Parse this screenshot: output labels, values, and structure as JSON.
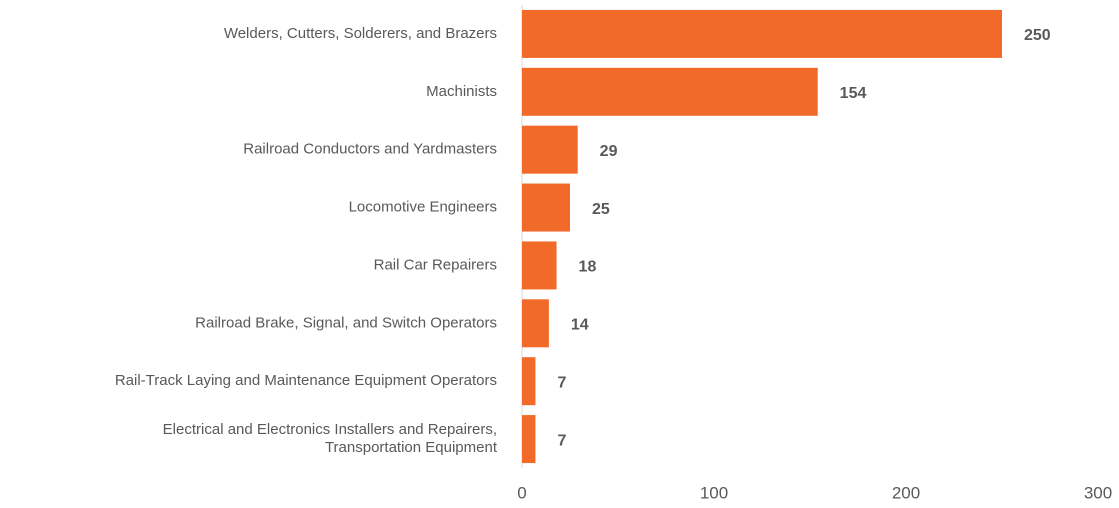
{
  "chart_data": {
    "type": "bar",
    "orientation": "horizontal",
    "categories": [
      "Welders, Cutters, Solderers, and Brazers",
      "Machinists",
      "Railroad Conductors and Yardmasters",
      "Locomotive Engineers",
      "Rail Car Repairers",
      "Railroad Brake, Signal, and Switch Operators",
      "Rail-Track Laying and Maintenance Equipment Operators",
      "Electrical and Electronics Installers and Repairers, Transportation Equipment"
    ],
    "values": [
      250,
      154,
      29,
      25,
      18,
      14,
      7,
      7
    ],
    "color": "#f26a2a",
    "xlim": [
      0,
      300
    ],
    "xticks": [
      0,
      100,
      200,
      300
    ],
    "grid": false
  }
}
